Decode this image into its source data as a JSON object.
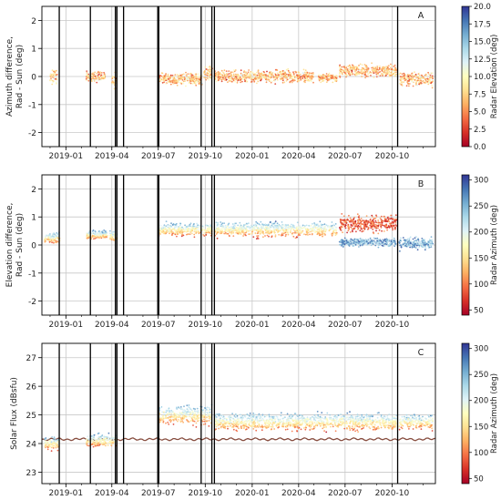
{
  "chart_data": [
    {
      "panel": "A",
      "type": "scatter",
      "ylabel": "Azimuth difference,\nRad - Sun (deg)",
      "ylim": [
        -2.5,
        2.5
      ],
      "yticks": [
        -2,
        -1,
        0,
        1,
        2
      ],
      "xticks": [
        "2019-01",
        "2019-04",
        "2019-07",
        "2019-10",
        "2020-01",
        "2020-04",
        "2020-07",
        "2020-10"
      ],
      "grid": true,
      "colorbar": {
        "label": "Radar Elevation (deg)",
        "colormap": "RdYlBu",
        "range": [
          0.0,
          20.0
        ],
        "ticks": [
          "0.0",
          "2.5",
          "5.0",
          "7.5",
          "10.0",
          "12.5",
          "15.0",
          "17.5",
          "20.0"
        ]
      },
      "series_clusters": [
        {
          "x_range": [
            "2018-12-01",
            "2018-12-15"
          ],
          "y_center": 0.0,
          "y_spread": 0.4
        },
        {
          "x_range": [
            "2019-02-10",
            "2019-03-20"
          ],
          "y_center": 0.0,
          "y_spread": 0.25
        },
        {
          "x_range": [
            "2019-04-01",
            "2019-04-10"
          ],
          "y_center": -0.1,
          "y_spread": 0.4
        },
        {
          "x_range": [
            "2019-07-01",
            "2019-09-25"
          ],
          "y_center": -0.1,
          "y_spread": 0.3
        },
        {
          "x_range": [
            "2019-09-28",
            "2019-10-15"
          ],
          "y_center": 0.1,
          "y_spread": 0.35
        },
        {
          "x_range": [
            "2019-10-20",
            "2020-04-30"
          ],
          "y_center": 0.0,
          "y_spread": 0.3
        },
        {
          "x_range": [
            "2020-05-10",
            "2020-06-15"
          ],
          "y_center": -0.05,
          "y_spread": 0.2
        },
        {
          "x_range": [
            "2020-06-20",
            "2020-10-10"
          ],
          "y_center": 0.2,
          "y_spread": 0.3
        },
        {
          "x_range": [
            "2020-10-15",
            "2020-12-20"
          ],
          "y_center": -0.1,
          "y_spread": 0.35
        }
      ]
    },
    {
      "panel": "B",
      "type": "scatter",
      "ylabel": "Elevation difference,\nRad - Sun (deg)",
      "ylim": [
        -2.5,
        2.5
      ],
      "yticks": [
        -2,
        -1,
        0,
        1,
        2
      ],
      "xticks": [
        "2019-01",
        "2019-04",
        "2019-07",
        "2019-10",
        "2020-01",
        "2020-04",
        "2020-07",
        "2020-10"
      ],
      "grid": true,
      "colorbar": {
        "label": "Radar Azimuth (deg)",
        "colormap": "RdYlBu",
        "range": [
          40,
          310
        ],
        "ticks": [
          "50",
          "100",
          "150",
          "200",
          "250",
          "300"
        ]
      },
      "series_clusters": [
        {
          "x_range": [
            "2018-11-20",
            "2018-12-20"
          ],
          "y_center": 0.25,
          "y_spread": 0.25
        },
        {
          "x_range": [
            "2019-02-10",
            "2019-03-25"
          ],
          "y_center": 0.35,
          "y_spread": 0.2
        },
        {
          "x_range": [
            "2019-03-28",
            "2019-04-12"
          ],
          "y_center": 0.3,
          "y_spread": 0.3
        },
        {
          "x_range": [
            "2019-07-01",
            "2019-10-15"
          ],
          "y_center": 0.55,
          "y_spread": 0.3
        },
        {
          "x_range": [
            "2019-10-20",
            "2020-06-15"
          ],
          "y_center": 0.55,
          "y_spread": 0.35
        },
        {
          "x_range": [
            "2020-06-20",
            "2020-10-10"
          ],
          "y_center": 0.75,
          "y_spread": 0.4
        },
        {
          "x_range": [
            "2020-06-20",
            "2020-10-10"
          ],
          "y_center": 0.1,
          "y_spread": 0.2
        },
        {
          "x_range": [
            "2020-10-15",
            "2020-12-20"
          ],
          "y_center": 0.05,
          "y_spread": 0.3
        }
      ]
    },
    {
      "panel": "C",
      "type": "scatter",
      "ylabel": "Solar Flux (dBsfu)",
      "ylim": [
        22.6,
        27.5
      ],
      "yticks": [
        23,
        24,
        25,
        26,
        27
      ],
      "xticks": [
        "2019-01",
        "2019-04",
        "2019-07",
        "2019-10",
        "2020-01",
        "2020-04",
        "2020-07",
        "2020-10"
      ],
      "grid": true,
      "colorbar": {
        "label": "Radar Azimuth (deg)",
        "colormap": "RdYlBu",
        "range": [
          40,
          310
        ],
        "ticks": [
          "50",
          "100",
          "150",
          "200",
          "250",
          "300"
        ]
      },
      "reference_line": {
        "level": 24.15,
        "description": "reference solar flux time series"
      },
      "series_clusters": [
        {
          "x_range": [
            "2018-11-20",
            "2018-12-20"
          ],
          "y_center": 24.0,
          "y_spread": 0.3
        },
        {
          "x_range": [
            "2019-02-10",
            "2019-04-12"
          ],
          "y_center": 24.1,
          "y_spread": 0.3
        },
        {
          "x_range": [
            "2019-07-01",
            "2019-10-15"
          ],
          "y_center": 25.0,
          "y_spread": 0.45
        },
        {
          "x_range": [
            "2019-10-20",
            "2020-10-10"
          ],
          "y_center": 24.75,
          "y_spread": 0.4
        },
        {
          "x_range": [
            "2020-10-15",
            "2020-12-20"
          ],
          "y_center": 24.75,
          "y_spread": 0.35
        }
      ]
    }
  ],
  "shared": {
    "x_range": [
      "2018-11-15",
      "2020-12-25"
    ],
    "vertical_markers": [
      "2018-12-19",
      "2019-02-18",
      "2019-04-08",
      "2019-04-11",
      "2019-04-24",
      "2019-06-30",
      "2019-07-02",
      "2019-09-23",
      "2019-10-14",
      "2019-10-19",
      "2020-10-12"
    ],
    "colors": {
      "grid": "#c8c8c8",
      "marker_line": "#000000",
      "axis": "#000000",
      "reference_line": "#7a3a2a"
    }
  }
}
